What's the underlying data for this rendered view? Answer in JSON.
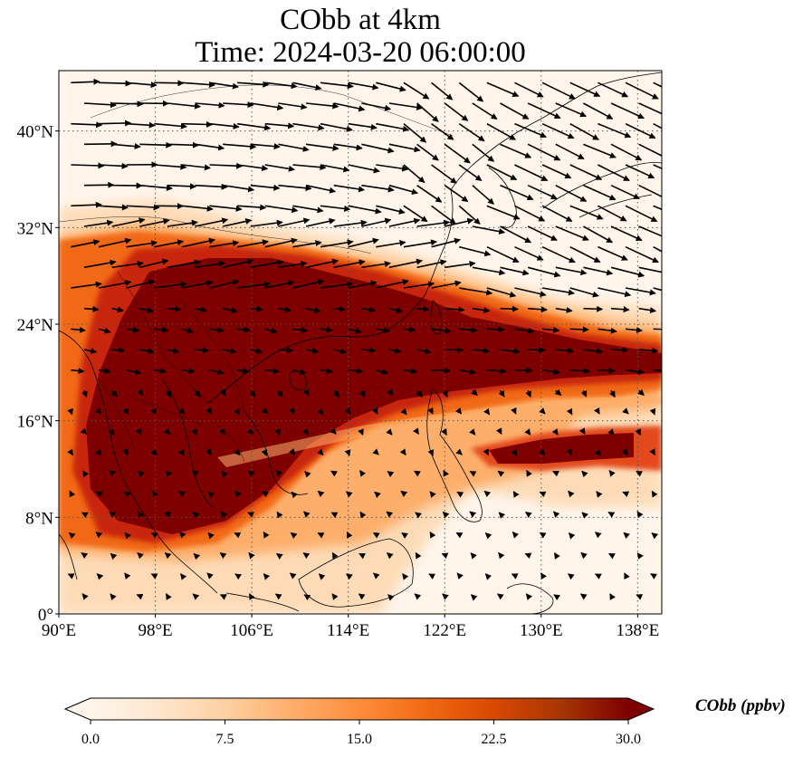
{
  "title": {
    "line1": "CObb at 4km",
    "line2": "Time: 2024-03-20 06:00:00"
  },
  "map": {
    "extent": {
      "lon_min": 90,
      "lon_max": 140,
      "lat_min": 0,
      "lat_max": 45
    },
    "lon_ticks": [
      {
        "value": 90,
        "label": "90°E"
      },
      {
        "value": 98,
        "label": "98°E"
      },
      {
        "value": 106,
        "label": "106°E"
      },
      {
        "value": 114,
        "label": "114°E"
      },
      {
        "value": 122,
        "label": "122°E"
      },
      {
        "value": 130,
        "label": "130°E"
      },
      {
        "value": 138,
        "label": "138°E"
      }
    ],
    "lat_ticks": [
      {
        "value": 0,
        "label": "0°"
      },
      {
        "value": 8,
        "label": "8°N"
      },
      {
        "value": 16,
        "label": "16°N"
      },
      {
        "value": 24,
        "label": "24°N"
      },
      {
        "value": 32,
        "label": "32°N"
      },
      {
        "value": 40,
        "label": "40°N"
      }
    ],
    "gridlines": "dotted",
    "field_colors": [
      "#fff5eb",
      "#fdd9b2",
      "#fdae6b",
      "#f16913",
      "#c7260a",
      "#7f0000"
    ]
  },
  "colorbar": {
    "label": "CObb (ppbv)",
    "min": 0.0,
    "max": 30.0,
    "extend": "both",
    "ticks": [
      "0.0",
      "7.5",
      "15.0",
      "22.5",
      "30.0"
    ],
    "colormap": [
      "#fff5eb",
      "#fee6ce",
      "#fdd0a2",
      "#fdae6b",
      "#fd8d3c",
      "#f16913",
      "#d94801",
      "#a63603",
      "#7f0000"
    ]
  }
}
